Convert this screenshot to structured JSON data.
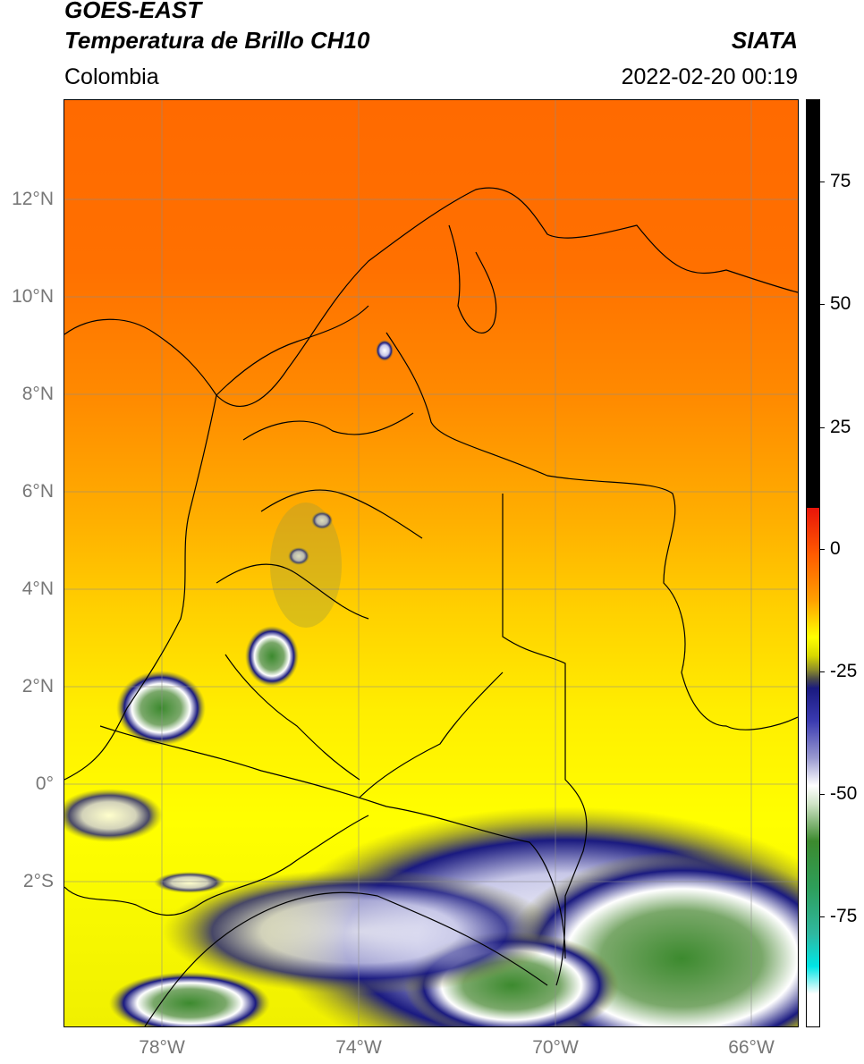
{
  "header": {
    "title_line1": "GOES-EAST",
    "title_line2": "Temperatura de Brillo CH10",
    "region": "Colombia",
    "organization": "SIATA",
    "datetime": "2022-02-20 00:19"
  },
  "map": {
    "lat_labels": [
      "12°N",
      "10°N",
      "8°N",
      "6°N",
      "4°N",
      "2°N",
      "0°",
      "2°S"
    ],
    "lon_labels": [
      "78°W",
      "74°W",
      "70°W",
      "66°W"
    ]
  },
  "colorbar": {
    "labels": [
      "75",
      "50",
      "25",
      "0",
      "-25",
      "-50",
      "-75"
    ],
    "colors": {
      "black": "#000000",
      "red": "#e8140a",
      "orange": "#ff7a00",
      "yellow": "#ffff00",
      "olive": "#8c8c2a",
      "navy": "#1a1a80",
      "white": "#ffffff",
      "green": "#3c8a2e",
      "teal": "#2fb8a0",
      "cyan": "#00e5e5"
    }
  }
}
